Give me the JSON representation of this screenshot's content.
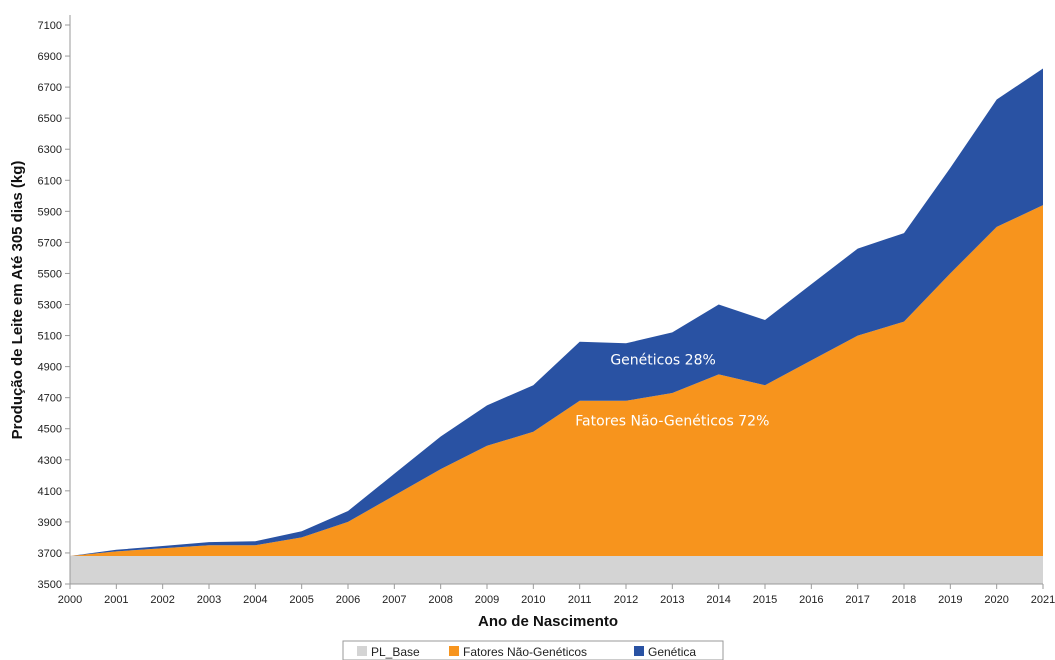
{
  "chart_data": {
    "type": "area",
    "stacked": true,
    "title": "",
    "xlabel": "Ano de Nascimento",
    "ylabel": "Produção de Leite em Até 305 dias (kg)",
    "x": [
      2000,
      2001,
      2002,
      2003,
      2004,
      2005,
      2006,
      2007,
      2008,
      2009,
      2010,
      2011,
      2012,
      2013,
      2014,
      2015,
      2016,
      2017,
      2018,
      2019,
      2020,
      2021
    ],
    "x_tick_labels": [
      "2000",
      "2001",
      "2002",
      "2003",
      "2004",
      "2005",
      "2006",
      "2007",
      "2008",
      "2009",
      "2010",
      "2011",
      "2012",
      "2013",
      "2014",
      "2015",
      "2016",
      "2017",
      "2018",
      "2019",
      "2020",
      "2021"
    ],
    "ylim": [
      3500,
      7100
    ],
    "y_ticks": [
      3500,
      3700,
      3900,
      4100,
      4300,
      4500,
      4700,
      4900,
      5100,
      5300,
      5500,
      5700,
      5900,
      6100,
      6300,
      6500,
      6700,
      6900,
      7100
    ],
    "series": [
      {
        "name": "PL_Base",
        "color": "#d4d4d4",
        "cumulative_values": [
          3680,
          3680,
          3680,
          3680,
          3680,
          3680,
          3680,
          3680,
          3680,
          3680,
          3680,
          3680,
          3680,
          3680,
          3680,
          3680,
          3680,
          3680,
          3680,
          3680,
          3680,
          3680
        ]
      },
      {
        "name": "Fatores Não-Genéticos",
        "color": "#f7941d",
        "cumulative_values": [
          3680,
          3710,
          3730,
          3750,
          3750,
          3800,
          3900,
          4070,
          4240,
          4390,
          4480,
          4680,
          4680,
          4730,
          4850,
          4780,
          4940,
          5100,
          5190,
          5500,
          5800,
          5940
        ]
      },
      {
        "name": "Genética",
        "color": "#2952a3",
        "cumulative_values": [
          3680,
          3720,
          3745,
          3770,
          3775,
          3840,
          3970,
          4210,
          4450,
          4650,
          4780,
          5060,
          5050,
          5120,
          5300,
          5200,
          5430,
          5660,
          5760,
          6180,
          6620,
          6820
        ]
      }
    ],
    "annotations": [
      {
        "text": "Genéticos 28%"
      },
      {
        "text": "Fatores Não-Genéticos 72%"
      }
    ],
    "legend": {
      "position": "bottom"
    }
  }
}
